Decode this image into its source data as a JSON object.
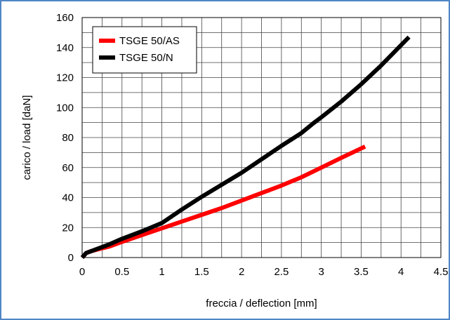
{
  "chart_data": {
    "type": "line",
    "xlabel": "freccia / deflection [mm]",
    "ylabel": "carico / load [daN]",
    "xlim": [
      0,
      4.5
    ],
    "ylim": [
      0,
      160
    ],
    "xticks": [
      0,
      0.5,
      1,
      1.5,
      2,
      2.5,
      3,
      3.5,
      4,
      4.5
    ],
    "yticks": [
      0,
      20,
      40,
      60,
      80,
      100,
      120,
      140,
      160
    ],
    "xtick_labels": [
      "0",
      "0.5",
      "1",
      "1.5",
      "2",
      "2.5",
      "3",
      "3.5",
      "4",
      "4.5"
    ],
    "ytick_labels": [
      "0",
      "20",
      "40",
      "60",
      "80",
      "100",
      "120",
      "140",
      "160"
    ],
    "grid": true,
    "legend_position": "top-left",
    "series": [
      {
        "name": "TSGE 50/AS",
        "color": "#ff0000",
        "x": [
          0,
          0.05,
          0.1,
          0.2,
          0.35,
          0.5,
          0.75,
          1.0,
          1.25,
          1.5,
          1.75,
          2.0,
          2.25,
          2.5,
          2.75,
          3.0,
          3.25,
          3.55
        ],
        "y": [
          0,
          3,
          4,
          5.5,
          7.5,
          10.5,
          15,
          19.5,
          24,
          28.5,
          33,
          38,
          43,
          48,
          53.5,
          60,
          66.5,
          74
        ]
      },
      {
        "name": "TSGE 50/N",
        "color": "#000000",
        "x": [
          0,
          0.05,
          0.1,
          0.2,
          0.35,
          0.5,
          0.75,
          1.0,
          1.25,
          1.5,
          1.75,
          2.0,
          2.25,
          2.5,
          2.75,
          2.9,
          3.0,
          3.25,
          3.5,
          3.75,
          4.1
        ],
        "y": [
          0,
          3,
          4,
          6,
          9,
          12.5,
          17.5,
          23,
          32,
          40.5,
          48.5,
          56.5,
          65.5,
          74.5,
          83,
          89.5,
          93.5,
          104,
          115.5,
          128,
          147
        ]
      }
    ]
  }
}
